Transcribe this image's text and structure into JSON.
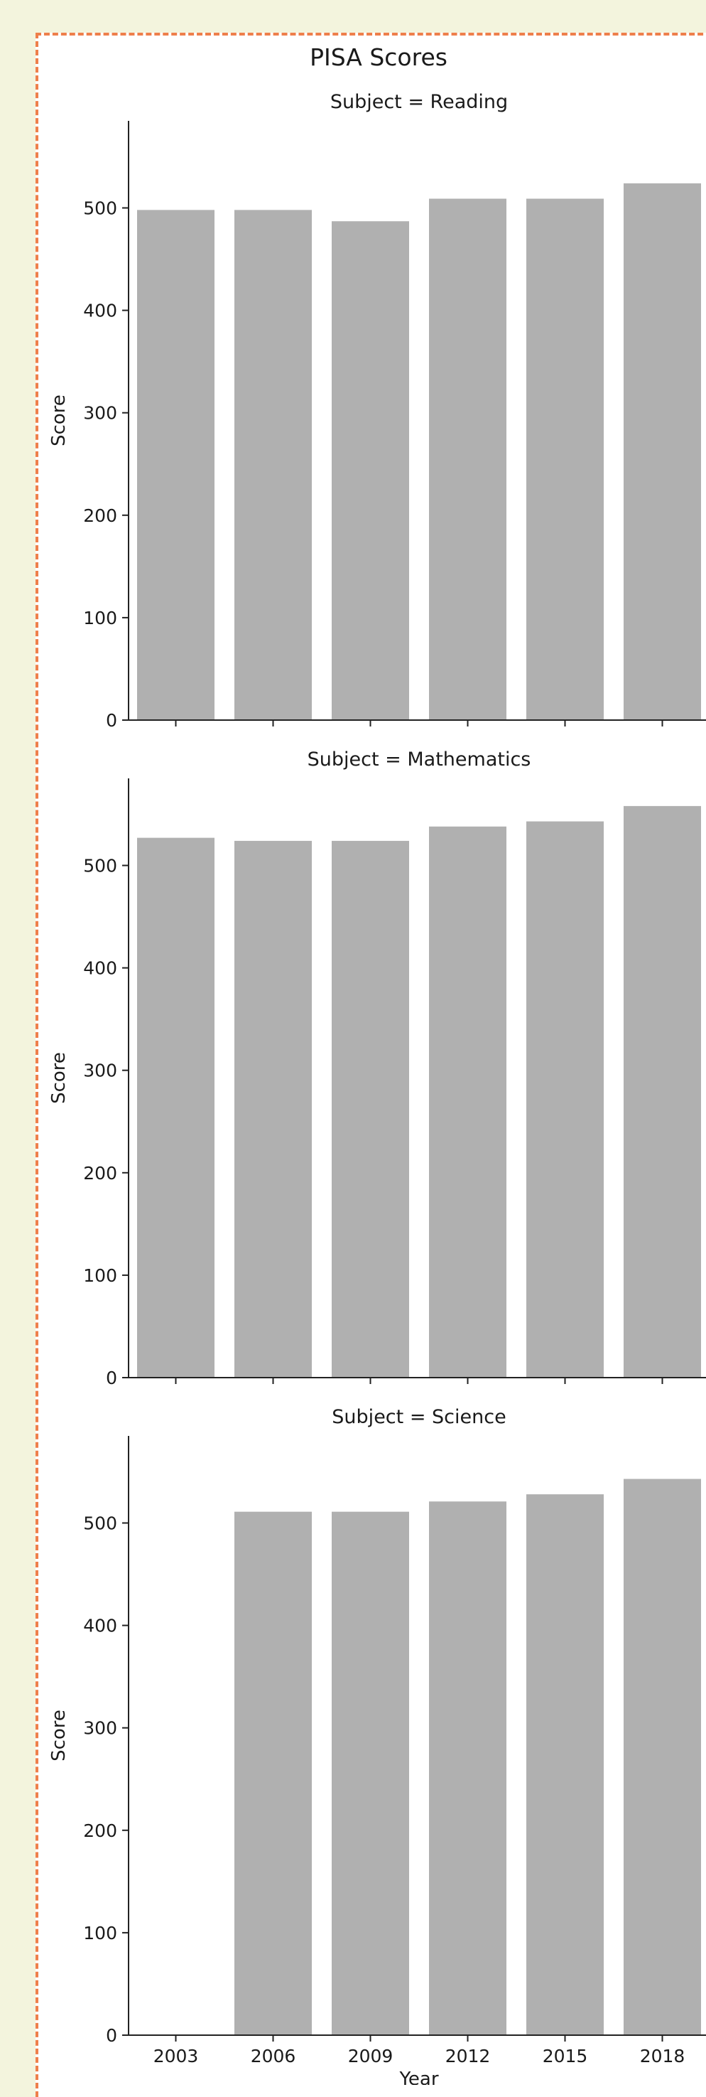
{
  "chart_data": {
    "type": "bar",
    "title": "PISA Scores",
    "xlabel": "Year",
    "ylabel": "Score",
    "categories": [
      "2003",
      "2006",
      "2009",
      "2012",
      "2015",
      "2018"
    ],
    "yticks": [
      0,
      100,
      200,
      300,
      400,
      500
    ],
    "ylim": [
      0,
      585
    ],
    "bar_color": "#b0b0b0",
    "facets": [
      {
        "title": "Subject = Reading",
        "values": [
          498,
          498,
          487,
          509,
          509,
          524
        ]
      },
      {
        "title": "Subject = Mathematics",
        "values": [
          527,
          524,
          524,
          538,
          543,
          558
        ]
      },
      {
        "title": "Subject = Science",
        "values": [
          null,
          511,
          511,
          521,
          528,
          543
        ]
      }
    ]
  }
}
